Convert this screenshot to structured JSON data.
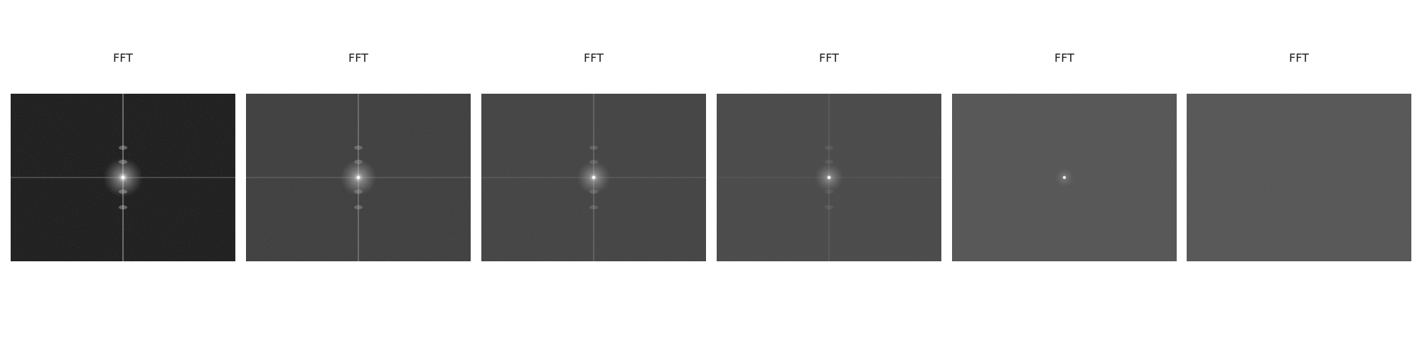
{
  "panels": [
    {
      "title": "FFT",
      "background": "#141414",
      "line_alpha": 0.55,
      "center_glow": 1.0,
      "noise": 0.18
    },
    {
      "title": "FFT",
      "background": "#3a3a3a",
      "line_alpha": 0.4,
      "center_glow": 0.9,
      "noise": 0.14
    },
    {
      "title": "FFT",
      "background": "#404040",
      "line_alpha": 0.28,
      "center_glow": 0.8,
      "noise": 0.12
    },
    {
      "title": "FFT",
      "background": "#474747",
      "line_alpha": 0.15,
      "center_glow": 0.65,
      "noise": 0.1
    },
    {
      "title": "FFT",
      "background": "#545454",
      "line_alpha": 0.0,
      "center_glow": 0.35,
      "noise": 0.08
    },
    {
      "title": "FFT",
      "background": "#555555",
      "line_alpha": 0.0,
      "center_glow": 0.0,
      "noise": 0.08
    }
  ]
}
